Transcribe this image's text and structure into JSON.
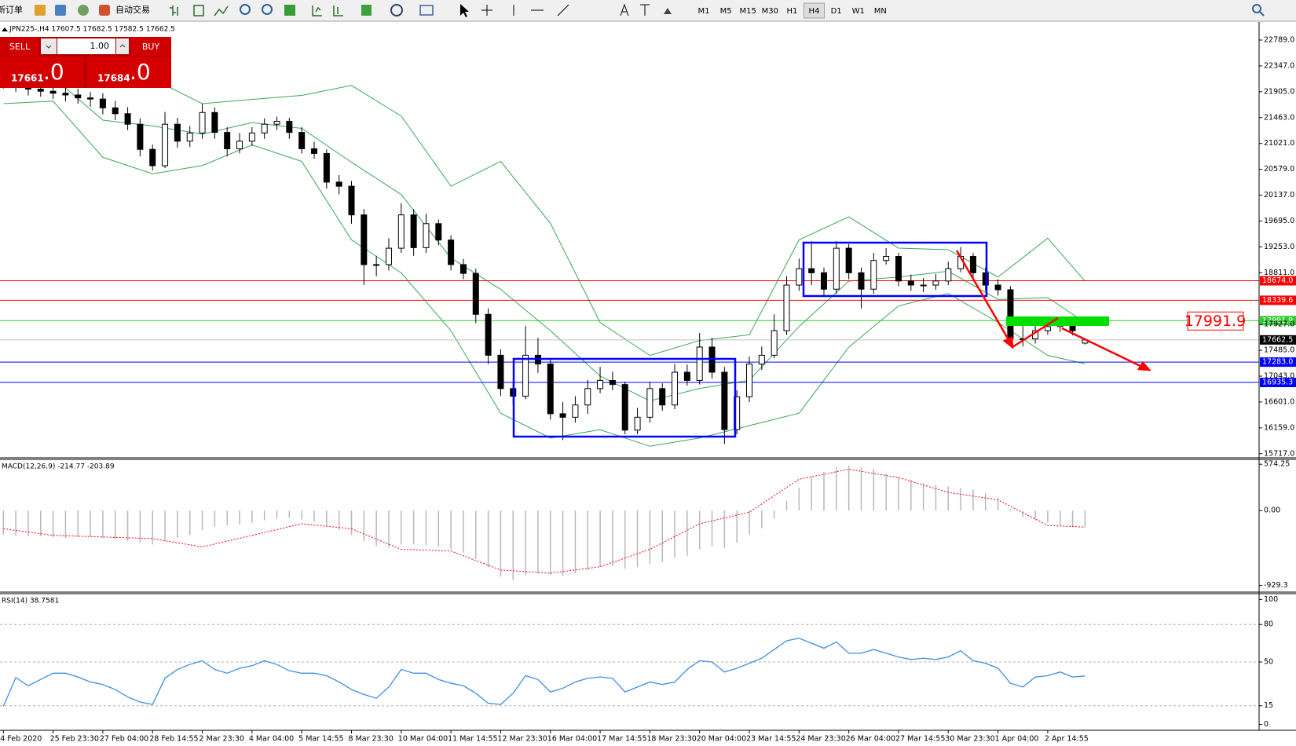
{
  "toolbar": {
    "new_order": "新订单",
    "auto_trading": "自动交易",
    "timeframes": [
      "M1",
      "M5",
      "M15",
      "M30",
      "H1",
      "H4",
      "D1",
      "W1",
      "MN"
    ],
    "active_timeframe": 5
  },
  "trade_panel": {
    "sell": "SELL",
    "buy": "BUY",
    "volume": "1.00",
    "sell_price": "17661",
    "sell_fraction": ".0",
    "buy_price": "17684",
    "buy_fraction": ".0"
  },
  "chart_data": [
    {
      "type": "candlestick",
      "title": "JPN225-,H4  17607.5 17682.5 17582.5 17662.5",
      "xlim": [
        -0.27,
        101
      ],
      "xticks": [
        {
          "value": 0,
          "label": "4 Feb 2020"
        },
        {
          "value": 4,
          "label": "25 Feb 23:30"
        },
        {
          "value": 8,
          "label": "27 Feb 04:00"
        },
        {
          "value": 12,
          "label": "28 Feb 14:55"
        },
        {
          "value": 16,
          "label": "2 Mar 23:30"
        },
        {
          "value": 20,
          "label": "4 Mar 04:00"
        },
        {
          "value": 24,
          "label": "5 Mar 14:55"
        },
        {
          "value": 28,
          "label": "8 Mar 23:30"
        },
        {
          "value": 32,
          "label": "10 Mar 04:00"
        },
        {
          "value": 36,
          "label": "11 Mar 14:55"
        },
        {
          "value": 40,
          "label": "12 Mar 23:30"
        },
        {
          "value": 44,
          "label": "16 Mar 04:00"
        },
        {
          "value": 48,
          "label": "17 Mar 14:55"
        },
        {
          "value": 52,
          "label": "18 Mar 23:30"
        },
        {
          "value": 56,
          "label": "20 Mar 04:00"
        },
        {
          "value": 60,
          "label": "23 Mar 14:55"
        },
        {
          "value": 64,
          "label": "24 Mar 23:30"
        },
        {
          "value": 68,
          "label": "26 Mar 04:00"
        },
        {
          "value": 72,
          "label": "27 Mar 14:55"
        },
        {
          "value": 76,
          "label": "30 Mar 23:30"
        },
        {
          "value": 80,
          "label": "1 Apr 04:00"
        },
        {
          "value": 84,
          "label": "2 Apr 14:55"
        }
      ],
      "ylim": [
        15660,
        23071
      ],
      "yticks": [
        {
          "value": 22789,
          "label": "22789.0"
        },
        {
          "value": 22347,
          "label": "22347.0"
        },
        {
          "value": 21905,
          "label": "21905.0"
        },
        {
          "value": 21463,
          "label": "21463.0"
        },
        {
          "value": 21021,
          "label": "21021.0"
        },
        {
          "value": 20579,
          "label": "20579.0"
        },
        {
          "value": 20137,
          "label": "20137.0"
        },
        {
          "value": 19695,
          "label": "19695.0"
        },
        {
          "value": 19253,
          "label": "19253.0"
        },
        {
          "value": 18811,
          "label": "18811.0"
        },
        {
          "value": 17927,
          "label": "17927.0"
        },
        {
          "value": 17485,
          "label": "17485.0"
        },
        {
          "value": 17043,
          "label": "17043.0"
        },
        {
          "value": 16601,
          "label": "16601.0"
        },
        {
          "value": 16159,
          "label": "16159.0"
        },
        {
          "value": 15717,
          "label": "15717.0"
        }
      ],
      "open": [
        22100,
        22055,
        22000,
        21950,
        21914,
        21880,
        21850,
        21800,
        21780,
        21630,
        21530,
        21350,
        20920,
        20640,
        21350,
        21060,
        21200,
        21550,
        21210,
        20930,
        21060,
        21200,
        21350,
        21400,
        21210,
        20930,
        20850,
        20360,
        20290,
        19800,
        18950,
        18950,
        19230,
        19800,
        19240,
        19650,
        19370,
        18950,
        18800,
        18100,
        17400,
        16830,
        16700,
        17400,
        17250,
        16400,
        16340,
        16550,
        16830,
        16970,
        16900,
        16120,
        16340,
        16830,
        16550,
        17110,
        16970,
        17540,
        17110,
        16130,
        16690,
        17250,
        17400,
        17820,
        18600,
        18880,
        18810,
        18530,
        19230,
        18810,
        18530,
        19020,
        19090,
        18670,
        18600,
        18600,
        18670,
        18880,
        19090,
        18810,
        18600,
        18520,
        17680,
        17680,
        17820,
        17890,
        17960,
        17607.5
      ],
      "high": [
        22200,
        22140,
        22090,
        22060,
        22010,
        21990,
        21960,
        21900,
        21880,
        21750,
        21640,
        21450,
        21000,
        21560,
        21460,
        21320,
        21700,
        21640,
        21300,
        21200,
        21300,
        21450,
        21480,
        21460,
        21300,
        21050,
        20920,
        20480,
        20380,
        19900,
        19100,
        19400,
        20000,
        19900,
        19820,
        19720,
        19450,
        19050,
        18880,
        18200,
        17500,
        16950,
        17900,
        17700,
        17350,
        16600,
        16700,
        16980,
        17200,
        17120,
        16950,
        16500,
        16950,
        16920,
        17250,
        17240,
        17780,
        17700,
        17200,
        16800,
        17380,
        17550,
        18100,
        18750,
        19050,
        19350,
        18900,
        19350,
        19300,
        18900,
        19150,
        19230,
        19150,
        18780,
        18720,
        18790,
        19000,
        19250,
        19150,
        18900,
        18700,
        18580,
        17900,
        17950,
        18000,
        18050,
        18020,
        17682.5
      ],
      "low": [
        21960,
        21900,
        21840,
        21820,
        21780,
        21740,
        21700,
        21650,
        21520,
        21420,
        21250,
        20800,
        20560,
        20600,
        20950,
        20960,
        21100,
        21100,
        20800,
        20850,
        20980,
        21100,
        21250,
        21100,
        20850,
        20760,
        20250,
        20150,
        19650,
        18600,
        18750,
        18850,
        19150,
        19100,
        19150,
        19280,
        18850,
        18700,
        17950,
        17250,
        16700,
        16550,
        16650,
        17100,
        16300,
        15950,
        16250,
        16400,
        16750,
        16800,
        16050,
        16050,
        16250,
        16450,
        16480,
        16880,
        16900,
        17000,
        15880,
        16050,
        16600,
        17150,
        17350,
        17750,
        18500,
        18600,
        18400,
        18450,
        18700,
        18200,
        18450,
        18950,
        18580,
        18500,
        18480,
        18520,
        18600,
        18820,
        18700,
        18500,
        18420,
        17560,
        17550,
        17600,
        17750,
        17800,
        17740,
        17582.5
      ],
      "close": [
        22055,
        22000,
        21950,
        21914,
        21880,
        21850,
        21800,
        21780,
        21630,
        21530,
        21350,
        20920,
        20640,
        21350,
        21060,
        21200,
        21550,
        21210,
        20930,
        21060,
        21200,
        21350,
        21400,
        21210,
        20930,
        20850,
        20360,
        20290,
        19800,
        18950,
        18950,
        19230,
        19800,
        19240,
        19650,
        19370,
        18950,
        18800,
        18100,
        17400,
        16830,
        16700,
        17400,
        17250,
        16400,
        16340,
        16550,
        16830,
        16970,
        16900,
        16120,
        16340,
        16830,
        16550,
        17110,
        16970,
        17540,
        17110,
        16130,
        16690,
        17250,
        17400,
        17820,
        18600,
        18880,
        18810,
        18530,
        19230,
        18810,
        18530,
        19020,
        19090,
        18670,
        18600,
        18600,
        18670,
        18880,
        19090,
        18810,
        18600,
        18520,
        17680,
        17680,
        17820,
        17890,
        17960,
        17820,
        17662.5
      ],
      "up_color": "#ffffff",
      "down_color": "#000000",
      "wick_color": "#000000",
      "bands": {
        "color": "#3aa655",
        "x": [
          0,
          4,
          8,
          12,
          16,
          20,
          24,
          28,
          32,
          36,
          40,
          44,
          48,
          52,
          56,
          60,
          64,
          68,
          72,
          76,
          80,
          84,
          87
        ],
        "upper": [
          22620,
          22549,
          22055,
          22126,
          21702,
          21773,
          21843,
          22013,
          21490,
          20290,
          20714,
          19655,
          17961,
          17397,
          17651,
          17750,
          19373,
          19768,
          19232,
          19204,
          18738,
          19401,
          18667
        ],
        "middle": [
          22168,
          22154,
          21420,
          21321,
          21180,
          21377,
          21279,
          20700,
          20149,
          19062,
          18526,
          17820,
          17044,
          16620,
          16832,
          16973,
          17891,
          18667,
          18738,
          18836,
          18356,
          18385,
          17961
        ],
        "lower": [
          21702,
          21745,
          20785,
          20502,
          20643,
          20997,
          20714,
          19373,
          18808,
          17820,
          16409,
          15985,
          16127,
          15844,
          15985,
          16197,
          16409,
          17538,
          18244,
          18455,
          17961,
          17397,
          17256
        ]
      },
      "levels": [
        {
          "value": 18674.0,
          "label": "18674.0",
          "color": "#ff0000",
          "label_color": "#ff0000"
        },
        {
          "value": 18339.6,
          "label": "18339.6",
          "color": "#ff0000",
          "label_color": "#ff0000"
        },
        {
          "value": 17991.9,
          "label": "17991.9",
          "color": "#33cc33",
          "label_color": "#33cc33"
        },
        {
          "value": 17662.5,
          "label": "17662.5",
          "color": "#c0c0c0",
          "label_color": "#000000"
        },
        {
          "value": 17283.0,
          "label": "17283.0",
          "color": "#0000ff",
          "label_color": "#0000ff"
        },
        {
          "value": 16935.3,
          "label": "16935.3",
          "color": "#0000ff",
          "label_color": "#0000ff"
        }
      ],
      "price_note": 17991.9,
      "note_color": "#ff0000"
    },
    {
      "type": "macd",
      "title": "MACD(12,26,9) -214.77 -203.89",
      "ylim": [
        -1001,
        625
      ],
      "yticks": [
        574.25,
        {
          "value": 0,
          "label": "0.00"
        },
        -929.3
      ],
      "hist_color": "#b8b8b8",
      "signal_color": "#ff0000",
      "values": [
        -300,
        -310,
        -320,
        -320,
        -330,
        -340,
        -330,
        -320,
        -340,
        -360,
        -380,
        -400,
        -420,
        -380,
        -340,
        -300,
        -240,
        -200,
        -180,
        -170,
        -150,
        -120,
        -100,
        -90,
        -110,
        -140,
        -190,
        -240,
        -300,
        -380,
        -440,
        -460,
        -420,
        -420,
        -430,
        -450,
        -480,
        -520,
        -600,
        -700,
        -820,
        -860,
        -800,
        -780,
        -800,
        -810,
        -780,
        -740,
        -700,
        -690,
        -720,
        -700,
        -660,
        -640,
        -580,
        -560,
        -480,
        -440,
        -460,
        -400,
        -300,
        -220,
        -100,
        120,
        280,
        420,
        480,
        540,
        560,
        540,
        520,
        460,
        420,
        380,
        340,
        320,
        300,
        280,
        260,
        220,
        160,
        20,
        -80,
        -120,
        -150,
        -180,
        -200,
        -210
      ],
      "signal": {
        "x": [
          0,
          4,
          8,
          12,
          16,
          20,
          24,
          28,
          32,
          36,
          40,
          44,
          48,
          52,
          56,
          60,
          64,
          68,
          72,
          76,
          80,
          84,
          87
        ],
        "values": [
          -225,
          -307,
          -327,
          -348,
          -450,
          -307,
          -164,
          -225,
          -481,
          -501,
          -737,
          -777,
          -696,
          -481,
          -164,
          -20,
          389,
          512,
          409,
          225,
          133,
          -184,
          -205
        ]
      }
    },
    {
      "type": "line",
      "title": "RSI(14) 38.7581",
      "ylim": [
        -4,
        104
      ],
      "yticks": [
        100,
        80,
        50,
        15,
        0
      ],
      "levels": [
        80,
        50,
        15
      ],
      "color": "#3d8fe0",
      "values": [
        14.5,
        37.5,
        31,
        36,
        41,
        41,
        38,
        34,
        32,
        28,
        22,
        18,
        16,
        37,
        44,
        48,
        51,
        44,
        41,
        45,
        47,
        51,
        48,
        43,
        41,
        41,
        39,
        34,
        28,
        24,
        21,
        30,
        44,
        41,
        41,
        36,
        33,
        31,
        25,
        17,
        16,
        25,
        39,
        36,
        26,
        29,
        34,
        37,
        38,
        37,
        26,
        30,
        34,
        32,
        34,
        44,
        51,
        50,
        42,
        45,
        49,
        53,
        60,
        67,
        69,
        65,
        61,
        66,
        57,
        57,
        60,
        57,
        54,
        52,
        53,
        52,
        54,
        59,
        51,
        49,
        45,
        33,
        30,
        38,
        39,
        42,
        38,
        38.7581
      ]
    }
  ]
}
